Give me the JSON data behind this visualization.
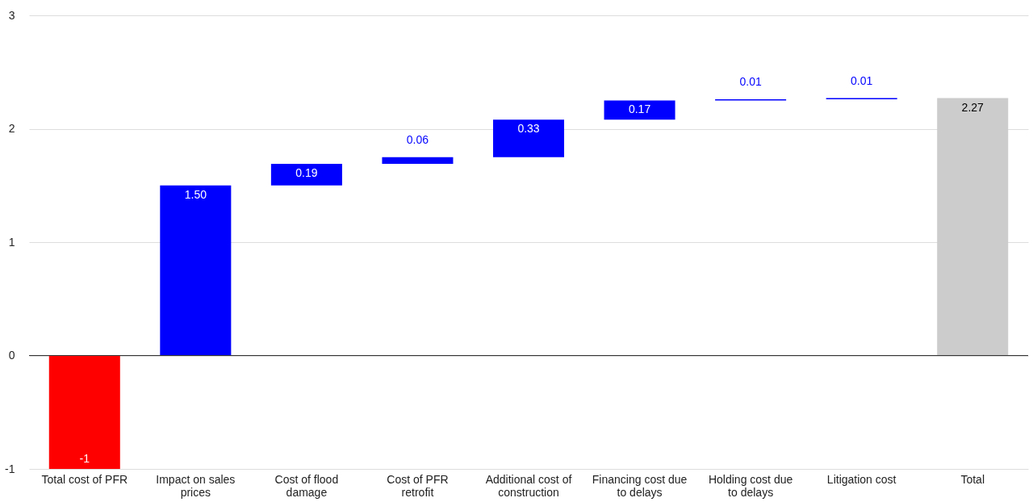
{
  "chart_data": {
    "type": "bar",
    "categories": [
      "Total cost of PFR",
      "Impact on sales prices",
      "Cost of flood damage",
      "Cost of PFR retrofit",
      "Additional cost of construction",
      "Financing cost due to delays",
      "Holding cost due to delays",
      "Litigation cost",
      "Total"
    ],
    "values": [
      -1,
      1.5,
      0.19,
      0.06,
      0.33,
      0.17,
      0.01,
      0.01,
      2.27
    ],
    "base": [
      0,
      0,
      1.5,
      1.69,
      1.75,
      2.08,
      2.25,
      2.26,
      0
    ],
    "colors": [
      "#ff0000",
      "#0000ff",
      "#0000ff",
      "#0000ff",
      "#0000ff",
      "#0000ff",
      "#0000ff",
      "#0000ff",
      "#cccccc"
    ],
    "value_labels": [
      "-1",
      "1.50",
      "0.19",
      "0.06",
      "0.33",
      "0.17",
      "0.01",
      "0.01",
      "2.27"
    ],
    "ylim": [
      -1,
      3
    ],
    "yticks": [
      -1,
      0,
      1,
      2,
      3
    ],
    "ref_lines": [
      {
        "axis": "y",
        "value": 0,
        "color": "#333333"
      }
    ],
    "grid": "y"
  }
}
